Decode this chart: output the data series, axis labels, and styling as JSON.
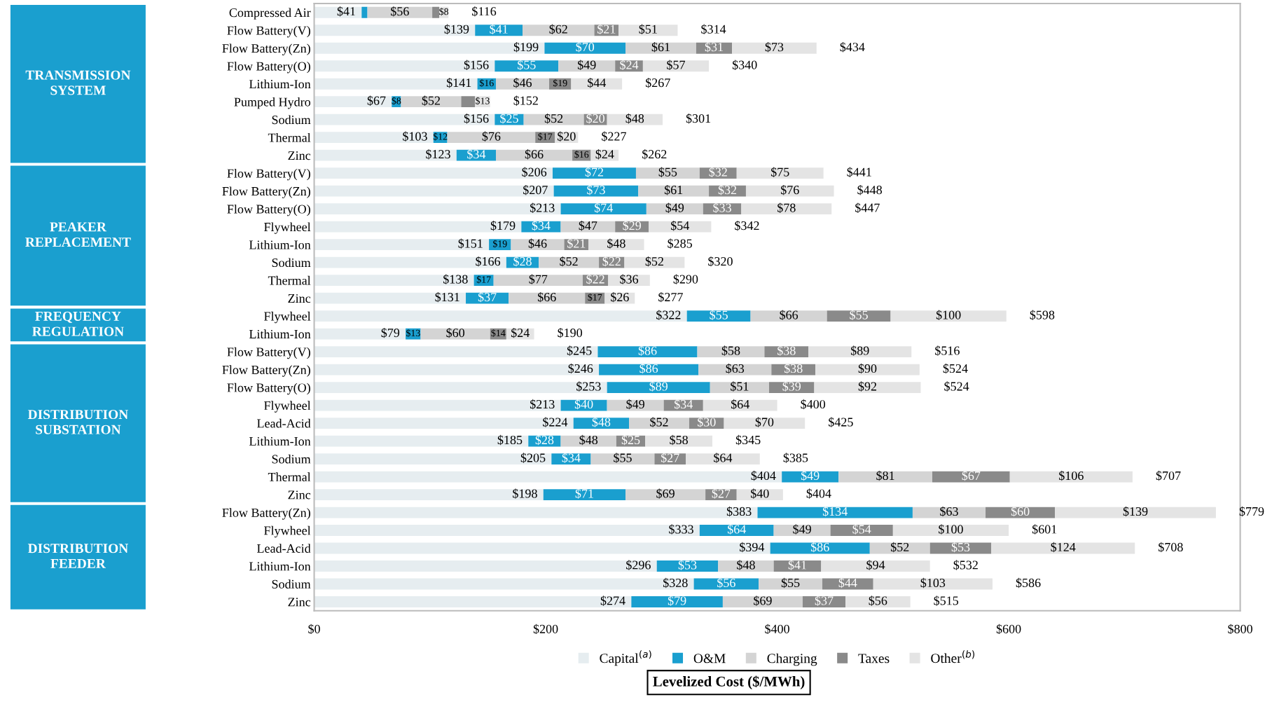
{
  "chart_data": {
    "type": "bar",
    "orientation": "horizontal",
    "stacked": true,
    "xlabel": "Levelized Cost ($/MWh)",
    "legend": "bottom",
    "xlim": [
      0,
      800
    ],
    "xticks": [
      {
        "value": 0,
        "label": "$0"
      },
      {
        "value": 200,
        "label": "$200"
      },
      {
        "value": 400,
        "label": "$400"
      },
      {
        "value": 600,
        "label": "$600"
      },
      {
        "value": 800,
        "label": "$800"
      }
    ],
    "annotations": [
      "TRANSMISSION SYSTEM",
      "PEAKER REPLACEMENT",
      "FREQUENCY REGULATION",
      "DISTRIBUTION SUBSTATION",
      "DISTRIBUTION FEEDER"
    ],
    "categories": [
      "Compressed Air",
      "Flow Battery(V)",
      "Flow Battery(Zn)",
      "Flow Battery(O)",
      "Lithium-Ion",
      "Pumped Hydro",
      "Sodium",
      "Thermal",
      "Zinc",
      "Flow Battery(V)",
      "Flow Battery(Zn)",
      "Flow Battery(O)",
      "Flywheel",
      "Lithium-Ion",
      "Sodium",
      "Thermal",
      "Zinc",
      "Flywheel",
      "Lithium-Ion",
      "Flow Battery(V)",
      "Flow Battery(Zn)",
      "Flow Battery(O)",
      "Flywheel",
      "Lead-Acid",
      "Lithium-Ion",
      "Sodium",
      "Thermal",
      "Zinc",
      "Flow Battery(Zn)",
      "Flywheel",
      "Lead-Acid",
      "Lithium-Ion",
      "Sodium",
      "Zinc"
    ],
    "series": [
      {
        "name": "Capital$^{(a)}$",
        "color": "#e6edf0",
        "values": [
          41,
          139,
          199,
          156,
          141,
          67,
          156,
          103,
          123,
          206,
          207,
          213,
          179,
          151,
          166,
          138,
          131,
          322,
          79,
          245,
          246,
          253,
          213,
          224,
          185,
          205,
          404,
          198,
          383,
          333,
          394,
          296,
          328,
          274
        ],
        "value_labels": [
          "$41",
          "$139",
          "$199",
          "$156",
          "$141",
          "$67",
          "$156",
          "$103",
          "$123",
          "$206",
          "$207",
          "$213",
          "$179",
          "$151",
          "$166",
          "$138",
          "$131",
          "$322",
          "$79",
          "$245",
          "$246",
          "$253",
          "$213",
          "$224",
          "$185",
          "$205",
          "$404",
          "$198",
          "$383",
          "$333",
          "$394",
          "$296",
          "$328",
          "$274"
        ]
      },
      {
        "name": "O&M",
        "color": "#1a9fcf",
        "values": [
          5,
          41,
          70,
          55,
          16,
          8,
          25,
          12,
          34,
          72,
          73,
          74,
          34,
          19,
          28,
          17,
          37,
          55,
          13,
          86,
          86,
          89,
          40,
          48,
          28,
          34,
          49,
          71,
          134,
          64,
          86,
          53,
          56,
          79
        ],
        "value_labels": [
          null,
          "$41",
          "$70",
          "$55",
          "$16",
          "$8",
          "$25",
          "$12",
          "$34",
          "$72",
          "$73",
          "$74",
          "$34",
          "$19",
          "$28",
          "$17",
          "$37",
          "$55",
          "$13",
          "$86",
          "$86",
          "$89",
          "$40",
          "$48",
          "$28",
          "$34",
          "$49",
          "$71",
          "$134",
          "$64",
          "$86",
          "$53",
          "$56",
          "$79"
        ]
      },
      {
        "name": "Charging",
        "color": "#d4d4d4",
        "values": [
          56,
          62,
          61,
          49,
          46,
          52,
          52,
          76,
          66,
          55,
          61,
          49,
          47,
          46,
          52,
          77,
          66,
          66,
          60,
          58,
          63,
          51,
          49,
          52,
          48,
          55,
          81,
          69,
          63,
          49,
          52,
          48,
          55,
          69
        ],
        "value_labels": [
          "$56",
          "$62",
          "$61",
          "$49",
          "$46",
          "$52",
          "$52",
          "$76",
          "$66",
          "$55",
          "$61",
          "$49",
          "$47",
          "$46",
          "$52",
          "$77",
          "$66",
          "$66",
          "$60",
          "$58",
          "$63",
          "$51",
          "$49",
          "$52",
          "$48",
          "$55",
          "$81",
          "$69",
          "$63",
          "$49",
          "$52",
          "$48",
          "$55",
          "$69"
        ]
      },
      {
        "name": "Taxes",
        "color": "#8a8a8a",
        "values": [
          6,
          21,
          31,
          24,
          19,
          12,
          20,
          17,
          16,
          32,
          32,
          33,
          29,
          21,
          22,
          22,
          17,
          55,
          14,
          38,
          38,
          39,
          34,
          30,
          25,
          27,
          67,
          27,
          60,
          54,
          53,
          41,
          44,
          37
        ],
        "value_labels": [
          null,
          "$21",
          "$31",
          "$24",
          "$19",
          null,
          "$20",
          "$17",
          "$16",
          "$32",
          "$32",
          "$33",
          "$29",
          "$21",
          "$22",
          "$22",
          "$17",
          "$55",
          "$14",
          "$38",
          "$38",
          "$39",
          "$34",
          "$30",
          "$25",
          "$27",
          "$67",
          "$27",
          "$60",
          "$54",
          "$53",
          "$41",
          "$44",
          "$37"
        ]
      },
      {
        "name": "Other$^{(b)}$",
        "color": "#e4e4e4",
        "values": [
          8,
          51,
          73,
          57,
          44,
          13,
          48,
          20,
          24,
          75,
          76,
          78,
          54,
          48,
          52,
          36,
          26,
          100,
          24,
          89,
          90,
          92,
          64,
          70,
          58,
          64,
          106,
          40,
          139,
          100,
          124,
          94,
          103,
          56
        ],
        "value_labels": [
          "$8",
          "$51",
          "$73",
          "$57",
          "$44",
          "$13",
          "$48",
          "$20",
          "$24",
          "$75",
          "$76",
          "$78",
          "$54",
          "$48",
          "$52",
          "$36",
          "$26",
          "$100",
          "$24",
          "$89",
          "$90",
          "$92",
          "$64",
          "$70",
          "$58",
          "$64",
          "$106",
          "$40",
          "$139",
          "$100",
          "$124",
          "$94",
          "$103",
          "$56"
        ]
      }
    ],
    "totals": [
      "$116",
      "$314",
      "$434",
      "$340",
      "$267",
      "$152",
      "$301",
      "$227",
      "$262",
      "$441",
      "$448",
      "$447",
      "$342",
      "$285",
      "$320",
      "$290",
      "$277",
      "$598",
      "$190",
      "$516",
      "$524",
      "$524",
      "$400",
      "$425",
      "$345",
      "$385",
      "$707",
      "$404",
      "$779",
      "$601",
      "$708",
      "$532",
      "$586",
      "$515"
    ]
  }
}
